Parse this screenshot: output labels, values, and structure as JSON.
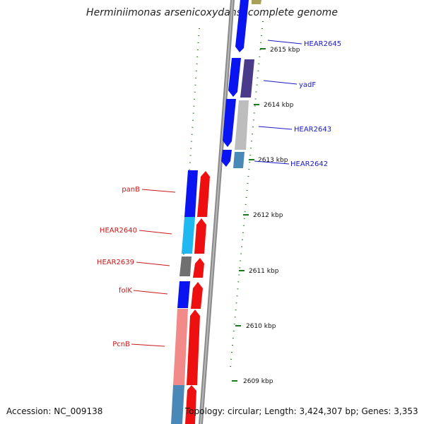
{
  "title": "Herminiimonas arsenicoxydans, complete genome",
  "footer": {
    "accession": "Accession: NC_009138",
    "topology": "Topology: circular; Length: 3,424,307 bp; Genes: 3,353"
  },
  "ticks": [
    "2615 kbp",
    "2614 kbp",
    "2613 kbp",
    "2612 kbp",
    "2611 kbp",
    "2610 kbp",
    "2609 kbp"
  ],
  "right_genes": [
    "HEAR2645",
    "yadF",
    "HEAR2643",
    "HEAR2642"
  ],
  "left_genes": [
    "panB",
    "HEAR2640",
    "HEAR2639",
    "folK",
    "PcnB"
  ],
  "colors": {
    "blue": "#0a14f0",
    "red": "#ee1010",
    "cyan": "#20b8f0",
    "gray": "#707070",
    "light_gray": "#bdbdbd",
    "pink": "#f28a8a",
    "steel": "#4a88b8",
    "purple": "#4a3a8a",
    "olive": "#a8a058",
    "tick_green": "#1a7a1a",
    "label_blue": "#1818c8",
    "label_red": "#c81818"
  }
}
